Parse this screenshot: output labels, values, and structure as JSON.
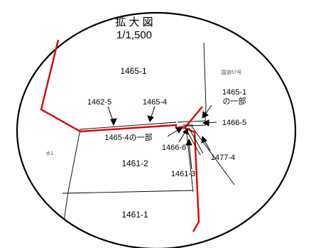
{
  "map": {
    "title": "拡 大 図",
    "scale": "1/1,500",
    "road_label": "国道57号",
    "water_label": "水1",
    "lots": {
      "lot_1465_1": "1465-1",
      "lot_1461_2": "1461-2",
      "lot_1461_1": "1461-1"
    },
    "callouts": {
      "c_1462_5": "1462-5",
      "c_1465_4": "1465-4",
      "c_1465_1_line1": "1465-1",
      "c_1465_1_line2": "の一部",
      "c_1466_5": "1466-5",
      "c_1465_4_part": "1465-4の一部",
      "c_1466_6": "1466-6",
      "c_1477_4": "1477-4",
      "c_1461_3": "1461-3"
    },
    "colors": {
      "boundary_highlight": "#e00000",
      "parcel_line": "#000000",
      "background": "#ffffff"
    }
  }
}
